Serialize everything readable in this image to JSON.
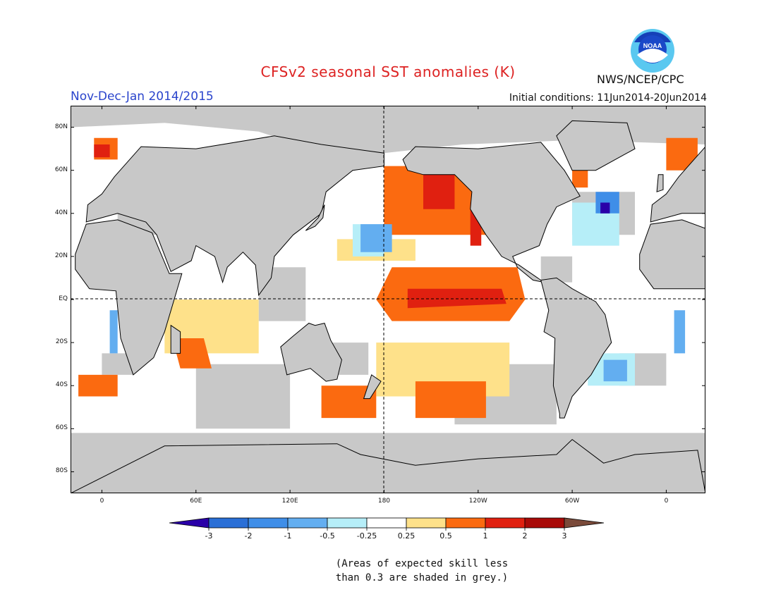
{
  "title": "CFSv2 seasonal SST anomalies (K)",
  "season": "Nov-Dec-Jan 2014/2015",
  "initial_conditions": "Initial conditions: 11Jun2014-20Jun2014",
  "agency": "NWS/NCEP/CPC",
  "logo_text": "NOAA",
  "note": [
    "(Areas of expected skill less",
    "than 0.3 are shaded in grey.)"
  ],
  "map": {
    "lon_ticks": [
      "0",
      "60E",
      "120E",
      "180",
      "120W",
      "60W",
      "0"
    ],
    "lat_ticks": [
      "80N",
      "60N",
      "40N",
      "20N",
      "EQ",
      "20S",
      "40S",
      "60S",
      "80S"
    ],
    "lon_tick_values": [
      0,
      60,
      120,
      180,
      240,
      300,
      360
    ],
    "lat_tick_values": [
      80,
      60,
      40,
      20,
      0,
      -20,
      -40,
      -60,
      -80
    ],
    "lon_range": [
      -20,
      385
    ],
    "lat_range": [
      -90,
      90
    ]
  },
  "colorbar": {
    "labels": [
      "-3",
      "-2",
      "-1",
      "-0.5",
      "-0.25",
      "0.25",
      "0.5",
      "1",
      "2",
      "3"
    ],
    "colors": [
      "#2a00a8",
      "#2a6fd6",
      "#3f8ee8",
      "#63aef0",
      "#b6eef8",
      "#ffffff",
      "#fee18a",
      "#fb6a10",
      "#e02010",
      "#a80a08",
      "#7a4a3a"
    ]
  },
  "colors": {
    "land": "#c8c8c8",
    "grey_mask": "#c8c8c8",
    "title": "#dd2222",
    "season": "#2a44cc"
  }
}
